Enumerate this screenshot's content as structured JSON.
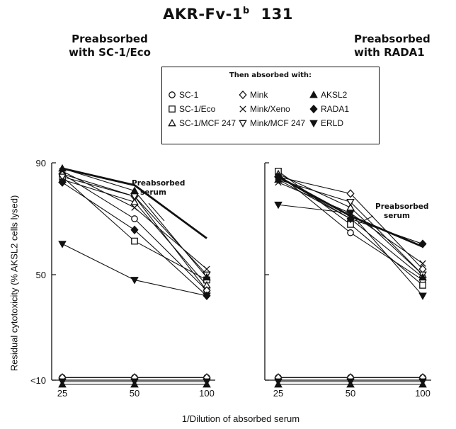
{
  "title": "AKR-Fv-1",
  "title_sup": "b",
  "title_suffix": "131",
  "panels": [
    {
      "title_line1": "Preabsorbed",
      "title_line2": "with SC-1/Eco"
    },
    {
      "title_line1": "Preabsorbed",
      "title_line2": "with RADA1"
    }
  ],
  "legend": {
    "title": "Then absorbed with:",
    "items": [
      {
        "label": "SC-1",
        "marker": "circle-open"
      },
      {
        "label": "Mink",
        "marker": "diamond-open"
      },
      {
        "label": "AKSL2",
        "marker": "triangle-filled"
      },
      {
        "label": "SC-1/Eco",
        "marker": "square-open"
      },
      {
        "label": "Mink/Xeno",
        "marker": "x"
      },
      {
        "label": "RADA1",
        "marker": "diamond-filled"
      },
      {
        "label": "SC-1/MCF 247",
        "marker": "triangle-open"
      },
      {
        "label": "Mink/MCF 247",
        "marker": "triangle-down-open"
      },
      {
        "label": "ERLD",
        "marker": "triangle-down-filled"
      }
    ]
  },
  "axes": {
    "xlabel": "1/Dilution of absorbed serum",
    "ylabel": "Residual cytotoxicity (% AKSL2 cells lysed)",
    "ytick_labels": [
      "90",
      "50",
      "<10"
    ],
    "xtick_labels": [
      "25",
      "50",
      "100"
    ]
  },
  "chart_data": [
    {
      "type": "line",
      "panel": "Preabsorbed with SC-1/Eco",
      "x": [
        25,
        50,
        100
      ],
      "x_scale": "log",
      "ylim": [
        10,
        90
      ],
      "annotation": "Preabsorbed serum",
      "series": [
        {
          "name": "Preabsorbed serum",
          "marker": "none",
          "bold": true,
          "values": [
            88,
            82,
            63
          ]
        },
        {
          "name": "SC-1",
          "marker": "circle-open",
          "values": [
            86,
            70,
            44
          ]
        },
        {
          "name": "SC-1/Eco",
          "marker": "square-open",
          "values": [
            85,
            62,
            48
          ]
        },
        {
          "name": "SC-1/MCF 247",
          "marker": "triangle-open",
          "values": [
            84,
            76,
            46
          ]
        },
        {
          "name": "Mink",
          "marker": "diamond-open",
          "values": [
            86,
            78,
            44
          ]
        },
        {
          "name": "Mink/Xeno",
          "marker": "x",
          "values": [
            87,
            74,
            52
          ]
        },
        {
          "name": "Mink/MCF 247",
          "marker": "triangle-down-open",
          "values": [
            85,
            78,
            50
          ]
        },
        {
          "name": "RADA1",
          "marker": "diamond-filled",
          "values": [
            83,
            66,
            42
          ]
        },
        {
          "name": "ERLD",
          "marker": "triangle-down-filled",
          "values": [
            61,
            48,
            42
          ]
        },
        {
          "name": "AKSL2",
          "marker": "triangle-filled",
          "values": [
            88,
            80,
            49
          ]
        },
        {
          "name": "SC-1 (<10)",
          "marker": "circle-open",
          "values": [
            11,
            11,
            11
          ]
        },
        {
          "name": "Mink (<10)",
          "marker": "diamond-open",
          "values": [
            11,
            11,
            11
          ]
        },
        {
          "name": "ERLD (<10)",
          "marker": "triangle-down-filled",
          "values": [
            9.5,
            9.5,
            9.5
          ]
        },
        {
          "name": "AKSL2 (<10)",
          "marker": "triangle-filled",
          "values": [
            8.5,
            8.5,
            8.5
          ]
        }
      ]
    },
    {
      "type": "line",
      "panel": "Preabsorbed with RADA1",
      "x": [
        25,
        50,
        100
      ],
      "x_scale": "log",
      "ylim": [
        10,
        90
      ],
      "annotation": "Preabsorbed serum",
      "series": [
        {
          "name": "Preabsorbed serum",
          "marker": "none",
          "bold": true,
          "values": [
            85,
            71,
            60
          ]
        },
        {
          "name": "SC-1",
          "marker": "circle-open",
          "values": [
            86,
            65,
            48
          ]
        },
        {
          "name": "SC-1/Eco",
          "marker": "square-open",
          "values": [
            87,
            68,
            46
          ]
        },
        {
          "name": "SC-1/MCF 247",
          "marker": "triangle-open",
          "values": [
            86,
            74,
            50
          ]
        },
        {
          "name": "Mink",
          "marker": "diamond-open",
          "values": [
            85,
            79,
            52
          ]
        },
        {
          "name": "Mink/Xeno",
          "marker": "x",
          "values": [
            83,
            72,
            54
          ]
        },
        {
          "name": "Mink/MCF 247",
          "marker": "triangle-down-open",
          "values": [
            84,
            76,
            50
          ]
        },
        {
          "name": "RADA1",
          "marker": "diamond-filled",
          "values": [
            85,
            70,
            61
          ]
        },
        {
          "name": "ERLD",
          "marker": "triangle-down-filled",
          "values": [
            75,
            72,
            42
          ]
        },
        {
          "name": "AKSL2",
          "marker": "triangle-filled",
          "values": [
            84,
            70,
            49
          ]
        },
        {
          "name": "SC-1 (<10)",
          "marker": "circle-open",
          "values": [
            11,
            11,
            11
          ]
        },
        {
          "name": "Mink (<10)",
          "marker": "diamond-open",
          "values": [
            11,
            11,
            11
          ]
        },
        {
          "name": "ERLD (<10)",
          "marker": "triangle-down-filled",
          "values": [
            9.5,
            9.5,
            9.5
          ]
        },
        {
          "name": "AKSL2 (<10)",
          "marker": "triangle-filled",
          "values": [
            8.5,
            8.5,
            8.5
          ]
        }
      ]
    }
  ]
}
